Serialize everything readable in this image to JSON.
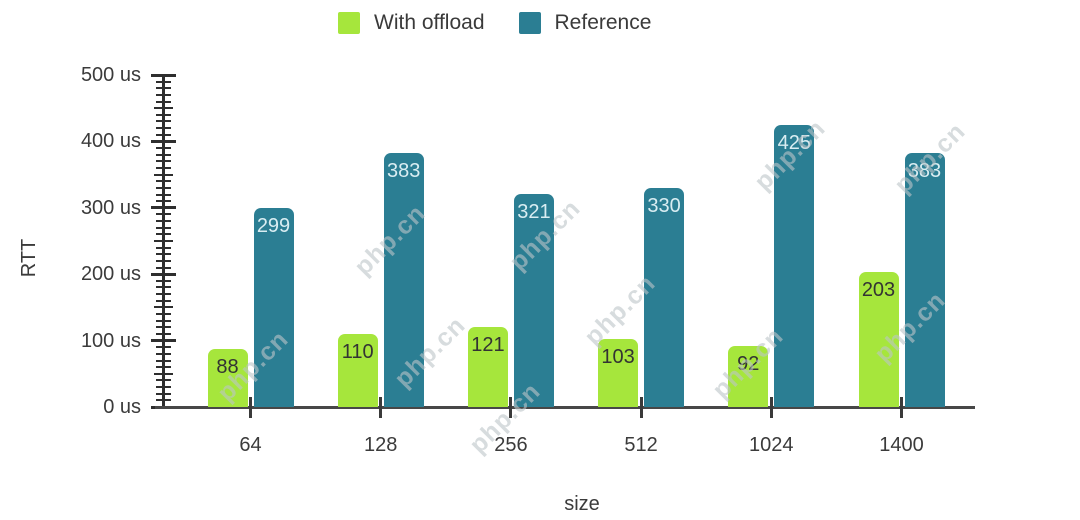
{
  "chart_data": {
    "type": "bar",
    "title": "",
    "categories": [
      "64",
      "128",
      "256",
      "512",
      "1024",
      "1400"
    ],
    "series": [
      {
        "name": "With offload",
        "color": "#a6e63c",
        "value_label_color": "#333333",
        "values": [
          88,
          110,
          121,
          103,
          92,
          203
        ]
      },
      {
        "name": "Reference",
        "color": "#2b7e93",
        "value_label_color": "#d9edf2",
        "values": [
          299,
          383,
          321,
          330,
          425,
          383
        ]
      }
    ],
    "xlabel": "size",
    "ylabel": "RTT",
    "y_unit": "us",
    "ylim": [
      0,
      500
    ],
    "y_major_step": 100,
    "y_mid_step": 50,
    "y_minor_step": 10,
    "y_tick_labels": [
      "0 us",
      "100 us",
      "200 us",
      "300 us",
      "400 us",
      "500 us"
    ],
    "grid": false,
    "legend_position": "top",
    "bar_value_labels_visible": true
  },
  "watermark": {
    "text": "php.cn"
  }
}
